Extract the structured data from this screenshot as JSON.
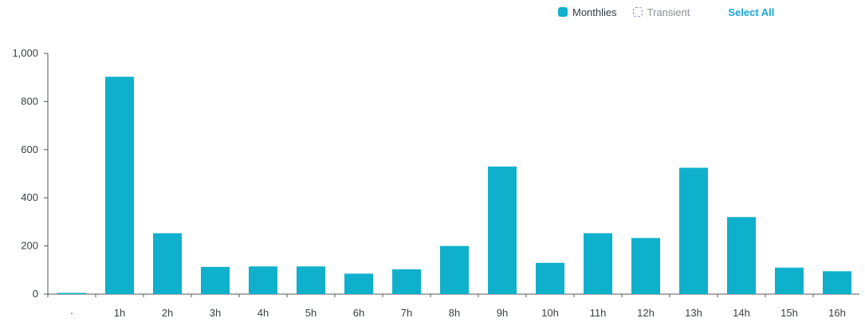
{
  "legend": {
    "items": [
      {
        "label": "Monthlies",
        "active": true
      },
      {
        "label": "Transient",
        "active": false
      }
    ],
    "select_all": "Select All"
  },
  "colors": {
    "bar": "#0fb0cc",
    "axis": "#555555",
    "link": "#1aa6d9"
  },
  "chart_data": {
    "type": "bar",
    "categories": [
      "·",
      "1h",
      "2h",
      "3h",
      "4h",
      "5h",
      "6h",
      "7h",
      "8h",
      "9h",
      "10h",
      "11h",
      "12h",
      "13h",
      "14h",
      "15h",
      "16h"
    ],
    "series": [
      {
        "name": "Monthlies",
        "values": [
          5,
          903,
          253,
          113,
          115,
          115,
          85,
          103,
          200,
          530,
          130,
          253,
          233,
          525,
          320,
          110,
          95
        ]
      }
    ],
    "ylim": [
      0,
      1000
    ],
    "yticks": [
      0,
      200,
      400,
      600,
      800,
      1000
    ],
    "ytick_labels": [
      "0",
      "200",
      "400",
      "600",
      "800",
      "1,000"
    ],
    "grid": false,
    "legend_position": "top-right"
  }
}
